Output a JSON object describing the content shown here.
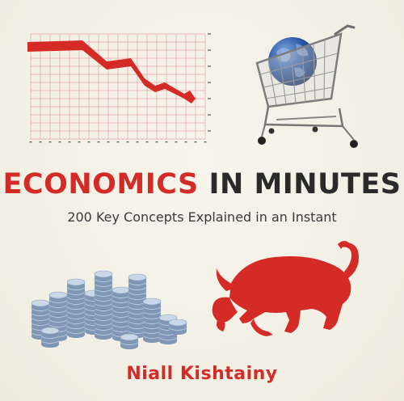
{
  "cover": {
    "title_part1": "ECONOMICS",
    "title_part2": "IN MINUTES",
    "subtitle": "200 Key Concepts Explained in an Instant",
    "author": "Niall Kishtainy"
  },
  "colors": {
    "accent_red": "#d42b27",
    "title_dark": "#2a2a2a",
    "background": "#f2efe4",
    "grid_red": "#e9a3a3",
    "coin_blue": "#a9bfd6"
  },
  "illustrations": [
    "falling-chart-icon",
    "globe-shopping-cart-icon",
    "coin-stacks-icon",
    "red-bull-icon"
  ]
}
